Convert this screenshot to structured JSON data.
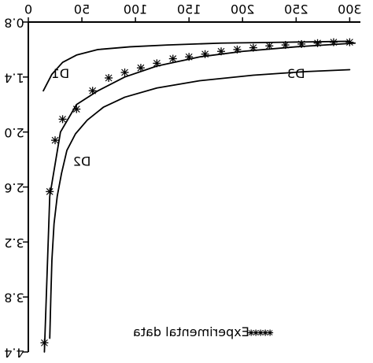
{
  "chart_data": {
    "type": "line",
    "title": "",
    "xlabel": "",
    "ylabel": "",
    "xlim": [
      0,
      310
    ],
    "ylim": [
      0.8,
      4.4
    ],
    "y_axis_inverted": true,
    "image_mirrored_horizontally": true,
    "grid": false,
    "x_ticks": [
      "0",
      "50",
      "100",
      "150",
      "200",
      "250",
      "300"
    ],
    "y_ticks": [
      "0.8",
      "1.4",
      "2.0",
      "2.6",
      "3.2",
      "3.8",
      "4.4"
    ],
    "series": [
      {
        "name": "D1",
        "style": "line",
        "x": [
          14,
          22,
          32,
          45,
          65,
          95,
          130,
          180,
          240,
          300
        ],
        "y": [
          1.55,
          1.37,
          1.24,
          1.16,
          1.1,
          1.07,
          1.05,
          1.03,
          1.02,
          1.01
        ]
      },
      {
        "name": "D2",
        "style": "line",
        "x": [
          20,
          21,
          22,
          24,
          27,
          31,
          36,
          44,
          55,
          70,
          90,
          120,
          160,
          210,
          260,
          300
        ],
        "y": [
          4.25,
          3.8,
          3.4,
          3.0,
          2.7,
          2.45,
          2.2,
          2.02,
          1.87,
          1.73,
          1.62,
          1.52,
          1.44,
          1.38,
          1.34,
          1.32
        ]
      },
      {
        "name": "D3",
        "style": "line",
        "x": [
          15,
          20,
          30,
          45,
          65,
          90,
          120,
          160,
          200,
          250,
          305
        ],
        "y": [
          4.4,
          2.7,
          2.0,
          1.7,
          1.55,
          1.4,
          1.28,
          1.18,
          1.12,
          1.07,
          1.03
        ]
      },
      {
        "name": "Experimental data",
        "style": "markers",
        "marker": "*",
        "x": [
          15,
          20,
          25,
          32,
          45,
          60,
          75,
          90,
          105,
          120,
          135,
          150,
          165,
          180,
          195,
          210,
          225,
          240,
          255,
          270,
          285,
          300
        ],
        "y": [
          4.3,
          2.65,
          2.09,
          1.86,
          1.75,
          1.55,
          1.41,
          1.35,
          1.3,
          1.25,
          1.2,
          1.18,
          1.15,
          1.12,
          1.1,
          1.08,
          1.06,
          1.05,
          1.04,
          1.03,
          1.02,
          1.02
        ]
      }
    ],
    "curve_labels": [
      "D1",
      "D2",
      "D3"
    ],
    "legend": {
      "marker": "*****",
      "label": "Experimental data",
      "placement": "bottom-right"
    }
  }
}
